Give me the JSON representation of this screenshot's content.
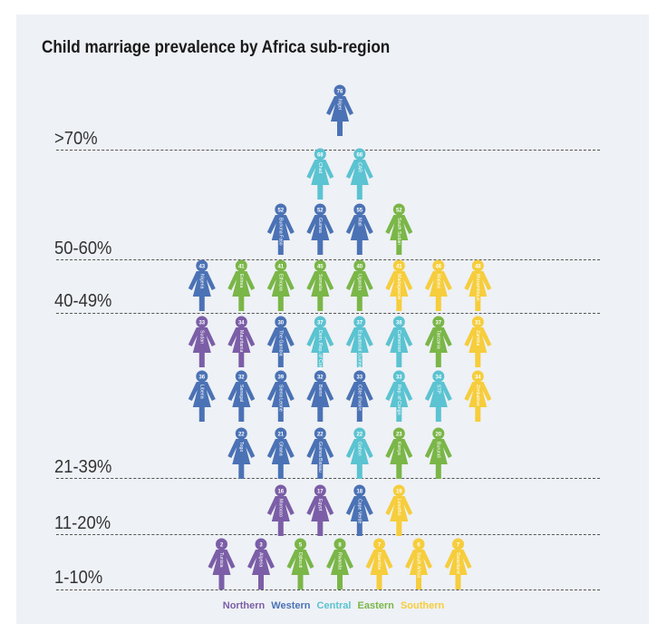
{
  "title": "Child marriage prevalence by Africa sub-region",
  "colors": {
    "Northern": "#7b5ea7",
    "Western": "#4b72b5",
    "Central": "#5bc3d1",
    "Eastern": "#7ab648",
    "Southern": "#f6cd3c"
  },
  "legend": [
    "Northern",
    "Western",
    "Central",
    "Eastern",
    "Southern"
  ],
  "chart_data": {
    "type": "pictogram",
    "title": "Child marriage prevalence by Africa sub-region",
    "bands": [
      ">70%",
      "50-60%",
      "40-49%",
      "21-39%",
      "11-20%",
      "1-10%"
    ],
    "rows": [
      [
        {
          "country": "Niger",
          "value": 76,
          "region": "Western"
        }
      ],
      [
        {
          "country": "Chad",
          "value": 68,
          "region": "Central"
        },
        {
          "country": "CAR",
          "value": 68,
          "region": "Central"
        }
      ],
      [
        {
          "country": "Burkina Faso",
          "value": 52,
          "region": "Western"
        },
        {
          "country": "Guinea",
          "value": 52,
          "region": "Western"
        },
        {
          "country": "Mali",
          "value": 55,
          "region": "Western"
        },
        {
          "country": "South Sudan",
          "value": 52,
          "region": "Eastern"
        }
      ],
      [
        {
          "country": "Nigeria",
          "value": 43,
          "region": "Western"
        },
        {
          "country": "Eritrea",
          "value": 41,
          "region": "Eastern"
        },
        {
          "country": "Ethiopia",
          "value": 41,
          "region": "Eastern"
        },
        {
          "country": "Somalia",
          "value": 45,
          "region": "Eastern"
        },
        {
          "country": "Uganda",
          "value": 40,
          "region": "Eastern"
        },
        {
          "country": "Madagascar",
          "value": 41,
          "region": "Southern"
        },
        {
          "country": "Malawi",
          "value": 46,
          "region": "Southern"
        },
        {
          "country": "Mozambique",
          "value": 48,
          "region": "Southern"
        }
      ],
      [
        {
          "country": "Sudan",
          "value": 33,
          "region": "Northern"
        },
        {
          "country": "Mauritania",
          "value": 34,
          "region": "Northern"
        },
        {
          "country": "The Gambia",
          "value": 30,
          "region": "Western"
        },
        {
          "country": "Dem. Rep. of Congo",
          "value": 37,
          "region": "Central"
        },
        {
          "country": "Equatorial Guinea",
          "value": 37,
          "region": "Central"
        },
        {
          "country": "Cameroon",
          "value": 38,
          "region": "Central"
        },
        {
          "country": "Tanzania",
          "value": 37,
          "region": "Eastern"
        },
        {
          "country": "Zambia",
          "value": 31,
          "region": "Southern"
        }
      ],
      [
        {
          "country": "Liberia",
          "value": 36,
          "region": "Western"
        },
        {
          "country": "Senegal",
          "value": 32,
          "region": "Western"
        },
        {
          "country": "Sierra Leone",
          "value": 39,
          "region": "Western"
        },
        {
          "country": "Benin",
          "value": 32,
          "region": "Western"
        },
        {
          "country": "Côte d'Ivoire",
          "value": 33,
          "region": "Western"
        },
        {
          "country": "Rep. of Congo",
          "value": 33,
          "region": "Central"
        },
        {
          "country": "STP",
          "value": 34,
          "region": "Central"
        },
        {
          "country": "Zimbabwe",
          "value": 34,
          "region": "Southern"
        }
      ],
      [
        {
          "country": "Togo",
          "value": 22,
          "region": "Western"
        },
        {
          "country": "Ghana",
          "value": 21,
          "region": "Western"
        },
        {
          "country": "Guinea Bissau",
          "value": 22,
          "region": "Western"
        },
        {
          "country": "Gabon",
          "value": 22,
          "region": "Central"
        },
        {
          "country": "Kenya",
          "value": 23,
          "region": "Eastern"
        },
        {
          "country": "Burundi",
          "value": 20,
          "region": "Eastern"
        }
      ],
      [
        {
          "country": "Morocco",
          "value": 16,
          "region": "Northern"
        },
        {
          "country": "Egypt",
          "value": 17,
          "region": "Northern"
        },
        {
          "country": "Cape Verde",
          "value": 18,
          "region": "Western"
        },
        {
          "country": "Lesotho",
          "value": 19,
          "region": "Southern"
        }
      ],
      [
        {
          "country": "Tunisia",
          "value": 2,
          "region": "Northern"
        },
        {
          "country": "Algeria",
          "value": 3,
          "region": "Northern"
        },
        {
          "country": "Djibouti",
          "value": 5,
          "region": "Eastern"
        },
        {
          "country": "Rwanda",
          "value": 8,
          "region": "Eastern"
        },
        {
          "country": "Namibia",
          "value": 7,
          "region": "Southern"
        },
        {
          "country": "South Africa",
          "value": 6,
          "region": "Southern"
        },
        {
          "country": "Swaziland",
          "value": 7,
          "region": "Southern"
        }
      ]
    ]
  }
}
